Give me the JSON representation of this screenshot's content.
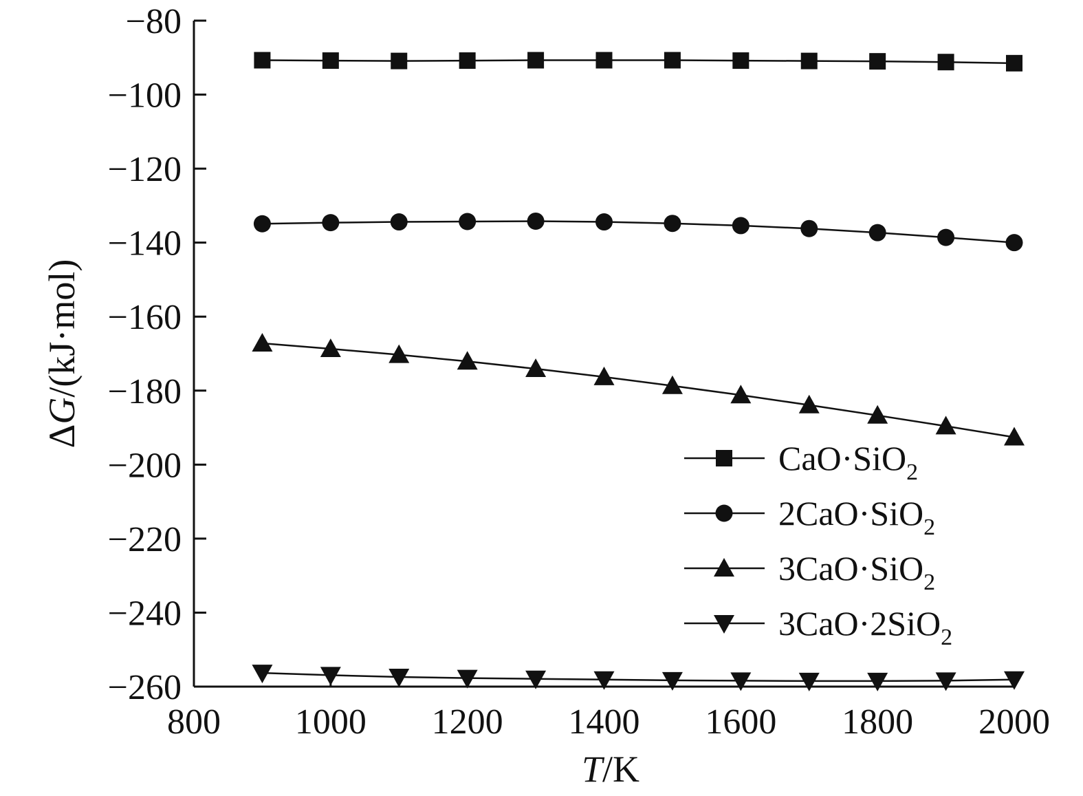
{
  "chart_data": {
    "type": "line",
    "title": "",
    "xlabel": {
      "italic": "T",
      "rest": "/K"
    },
    "ylabel": {
      "prefix": "Δ",
      "italic": "G",
      "rest": "/(kJ·mol)"
    },
    "xlim": [
      800,
      2000
    ],
    "ylim": [
      -260,
      -80
    ],
    "xticks": [
      800,
      1000,
      1200,
      1400,
      1600,
      1800,
      2000
    ],
    "yticks": [
      -80,
      -100,
      -120,
      -140,
      -160,
      -180,
      -200,
      -220,
      -240,
      -260
    ],
    "x": [
      900,
      1000,
      1100,
      1200,
      1300,
      1400,
      1500,
      1600,
      1700,
      1800,
      1900,
      2000
    ],
    "legend_position": "right",
    "grid": false,
    "series": [
      {
        "name": "CaO·SiO2",
        "label_main": "CaO·SiO",
        "label_sub": "2",
        "marker": "square",
        "values": [
          -90.7,
          -90.8,
          -90.9,
          -90.8,
          -90.7,
          -90.7,
          -90.7,
          -90.8,
          -90.9,
          -91.0,
          -91.2,
          -91.5
        ]
      },
      {
        "name": "2CaO·SiO2",
        "label_main": "2CaO·SiO",
        "label_sub": "2",
        "marker": "circle",
        "values": [
          -134.9,
          -134.6,
          -134.4,
          -134.3,
          -134.2,
          -134.4,
          -134.8,
          -135.4,
          -136.2,
          -137.3,
          -138.6,
          -140.0
        ]
      },
      {
        "name": "3CaO·SiO2",
        "label_main": "3CaO·SiO",
        "label_sub": "2",
        "marker": "triangle-up",
        "values": [
          -167.2,
          -168.7,
          -170.3,
          -172.1,
          -174.1,
          -176.3,
          -178.7,
          -181.2,
          -183.9,
          -186.7,
          -189.6,
          -192.6
        ]
      },
      {
        "name": "3CaO·2SiO2",
        "label_main": "3CaO·2SiO",
        "label_sub": "2",
        "marker": "triangle-down",
        "values": [
          -256.3,
          -256.9,
          -257.4,
          -257.7,
          -257.9,
          -258.1,
          -258.3,
          -258.4,
          -258.5,
          -258.5,
          -258.4,
          -258.1
        ]
      }
    ]
  }
}
